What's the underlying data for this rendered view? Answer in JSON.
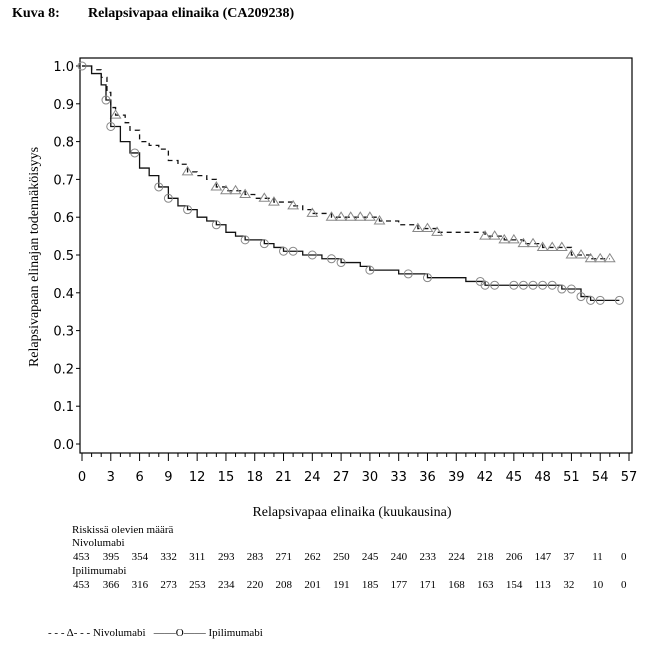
{
  "figure": {
    "number": "Kuva 8:",
    "title": "Relapsivapaa elinaika (CA209238)"
  },
  "chart_data": {
    "type": "line",
    "subtype": "kaplan-meier",
    "title": "Relapsivapaa elinaika (CA209238)",
    "xlabel": "Relapsivapaa elinaika (kuukausina)",
    "ylabel": "Relapsivapaan elinajan todennäköisyys",
    "xlim": [
      0,
      57
    ],
    "ylim": [
      0,
      1.0
    ],
    "xticks": [
      "0",
      "3",
      "6",
      "9",
      "12",
      "15",
      "18",
      "21",
      "24",
      "27",
      "30",
      "33",
      "36",
      "39",
      "42",
      "45",
      "48",
      "51",
      "54",
      "57"
    ],
    "yticks": [
      "0.0",
      "0.1",
      "0.2",
      "0.3",
      "0.4",
      "0.5",
      "0.6",
      "0.7",
      "0.8",
      "0.9",
      "1.0"
    ],
    "grid": false,
    "legend_position": "bottom-left",
    "series": [
      {
        "name": "Nivolumabi",
        "style": "dashed",
        "marker": "triangle",
        "points": [
          [
            0,
            1.0
          ],
          [
            1,
            0.99
          ],
          [
            2,
            0.97
          ],
          [
            2.6,
            0.93
          ],
          [
            3,
            0.89
          ],
          [
            3.5,
            0.87
          ],
          [
            4.5,
            0.85
          ],
          [
            5,
            0.83
          ],
          [
            6,
            0.8
          ],
          [
            7,
            0.79
          ],
          [
            8,
            0.78
          ],
          [
            9,
            0.75
          ],
          [
            10,
            0.74
          ],
          [
            11,
            0.72
          ],
          [
            12,
            0.71
          ],
          [
            13,
            0.7
          ],
          [
            14,
            0.68
          ],
          [
            15,
            0.67
          ],
          [
            17,
            0.66
          ],
          [
            18,
            0.65
          ],
          [
            20,
            0.64
          ],
          [
            22,
            0.63
          ],
          [
            23,
            0.62
          ],
          [
            24,
            0.61
          ],
          [
            26,
            0.6
          ],
          [
            30,
            0.6
          ],
          [
            31,
            0.59
          ],
          [
            33,
            0.58
          ],
          [
            35,
            0.57
          ],
          [
            37,
            0.56
          ],
          [
            40,
            0.56
          ],
          [
            42,
            0.55
          ],
          [
            44,
            0.54
          ],
          [
            46,
            0.53
          ],
          [
            48,
            0.52
          ],
          [
            50,
            0.52
          ],
          [
            51,
            0.5
          ],
          [
            53,
            0.49
          ],
          [
            55,
            0.49
          ]
        ],
        "censor_x": [
          3.5,
          11,
          14,
          15,
          16,
          17,
          19,
          20,
          22,
          24,
          26,
          27,
          28,
          29,
          30,
          31,
          35,
          36,
          37,
          42,
          43,
          44,
          45,
          46,
          47,
          48,
          49,
          50,
          51,
          52,
          53,
          54,
          55
        ]
      },
      {
        "name": "Ipilimumabi",
        "style": "solid",
        "marker": "circle",
        "points": [
          [
            0,
            1.0
          ],
          [
            1,
            0.98
          ],
          [
            2,
            0.95
          ],
          [
            2.5,
            0.91
          ],
          [
            3,
            0.84
          ],
          [
            4,
            0.8
          ],
          [
            5,
            0.77
          ],
          [
            6,
            0.73
          ],
          [
            7,
            0.71
          ],
          [
            8,
            0.68
          ],
          [
            9,
            0.65
          ],
          [
            10,
            0.63
          ],
          [
            11,
            0.62
          ],
          [
            12,
            0.6
          ],
          [
            13,
            0.59
          ],
          [
            14,
            0.58
          ],
          [
            15,
            0.56
          ],
          [
            16,
            0.55
          ],
          [
            17,
            0.54
          ],
          [
            19,
            0.53
          ],
          [
            20,
            0.52
          ],
          [
            21,
            0.51
          ],
          [
            23,
            0.5
          ],
          [
            25,
            0.49
          ],
          [
            27,
            0.48
          ],
          [
            29,
            0.47
          ],
          [
            30,
            0.46
          ],
          [
            33,
            0.45
          ],
          [
            36,
            0.44
          ],
          [
            40,
            0.43
          ],
          [
            42,
            0.42
          ],
          [
            46,
            0.42
          ],
          [
            50,
            0.41
          ],
          [
            52,
            0.39
          ],
          [
            53,
            0.38
          ],
          [
            56,
            0.38
          ]
        ],
        "censor_x": [
          0,
          2.5,
          3,
          5.5,
          8,
          9,
          11,
          14,
          17,
          19,
          21,
          22,
          24,
          26,
          27,
          30,
          34,
          36,
          41.5,
          42,
          43,
          45,
          46,
          47,
          48,
          49,
          50,
          51,
          52,
          53,
          54,
          56
        ]
      }
    ]
  },
  "risk_table": {
    "title": "Riskissä olevien määrä",
    "groups": [
      {
        "name": "Nivolumabi",
        "counts": [
          "453",
          "395",
          "354",
          "332",
          "311",
          "293",
          "283",
          "271",
          "262",
          "250",
          "245",
          "240",
          "233",
          "224",
          "218",
          "206",
          "147",
          "37",
          "11",
          "0"
        ]
      },
      {
        "name": "Ipilimumabi",
        "counts": [
          "453",
          "366",
          "316",
          "273",
          "253",
          "234",
          "220",
          "208",
          "201",
          "191",
          "185",
          "177",
          "171",
          "168",
          "163",
          "154",
          "113",
          "32",
          "10",
          "0"
        ]
      }
    ]
  },
  "legend": [
    {
      "label": "Nivolumabi",
      "symbol": "- - - Δ- - -"
    },
    {
      "label": "Ipilimumabi",
      "symbol": "——O——"
    }
  ]
}
